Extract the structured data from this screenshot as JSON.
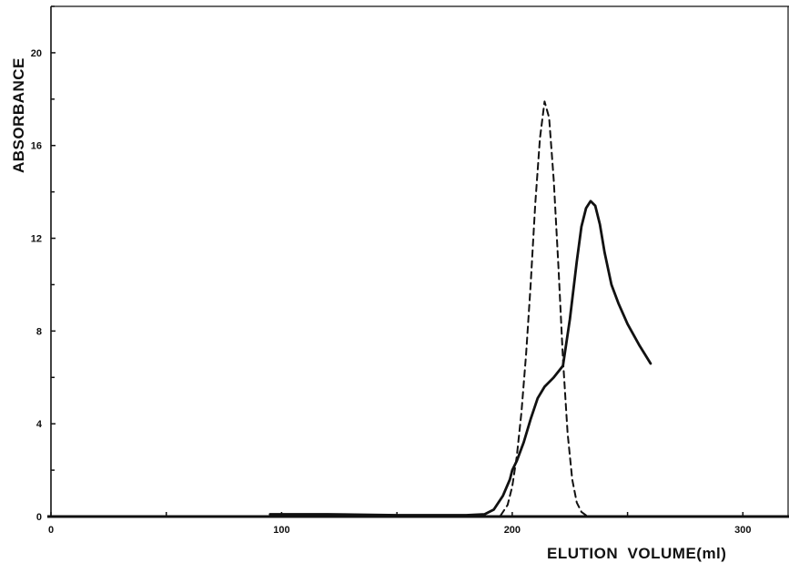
{
  "chart_data": {
    "type": "line",
    "title": "",
    "xlabel": "ELUTION  VOLUME(ml)",
    "ylabel": "ABSORBANCE",
    "xlim": [
      0,
      320
    ],
    "ylim": [
      0,
      22
    ],
    "x_ticks": [
      0,
      100,
      200,
      300
    ],
    "y_ticks": [
      0,
      4,
      8,
      12,
      16,
      20
    ],
    "grid": false,
    "series": [
      {
        "style": "solid",
        "color": "#111111",
        "x": [
          95,
          120,
          150,
          180,
          188,
          192,
          196,
          199,
          200,
          202,
          205,
          208,
          211,
          214,
          218,
          222,
          225,
          228,
          230,
          232,
          234,
          236,
          238,
          240,
          243,
          246,
          250,
          255,
          260
        ],
        "y": [
          0.1,
          0.1,
          0.06,
          0.06,
          0.1,
          0.3,
          0.9,
          1.6,
          2.0,
          2.4,
          3.2,
          4.2,
          5.1,
          5.6,
          6.0,
          6.5,
          8.5,
          11.0,
          12.5,
          13.3,
          13.6,
          13.4,
          12.6,
          11.4,
          10.0,
          9.2,
          8.3,
          7.4,
          6.6
        ]
      },
      {
        "style": "dashed",
        "color": "#111111",
        "x": [
          195,
          198,
          200,
          202,
          204,
          206,
          208,
          210,
          212,
          214,
          216,
          218,
          220,
          222,
          224,
          226,
          228,
          230,
          232
        ],
        "y": [
          0.05,
          0.5,
          1.3,
          2.6,
          4.5,
          7.0,
          10.0,
          13.5,
          16.3,
          17.9,
          17.2,
          14.5,
          10.8,
          6.8,
          3.6,
          1.6,
          0.6,
          0.2,
          0.05
        ]
      }
    ]
  }
}
